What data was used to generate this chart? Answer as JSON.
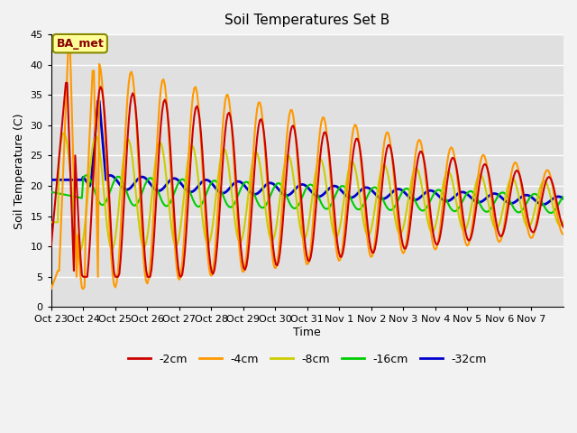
{
  "title": "Soil Temperatures Set B",
  "xlabel": "Time",
  "ylabel": "Soil Temperature (C)",
  "ylim": [
    0,
    45
  ],
  "annotation": "BA_met",
  "bg_color": "#e0e0e0",
  "tick_labels": [
    "Oct 23",
    "Oct 24",
    "Oct 25",
    "Oct 26",
    "Oct 27",
    "Oct 28",
    "Oct 29",
    "Oct 30",
    "Oct 31",
    "Nov 1",
    "Nov 2",
    "Nov 3",
    "Nov 4",
    "Nov 5",
    "Nov 6",
    "Nov 7"
  ],
  "legend_labels": [
    "-2cm",
    "-4cm",
    "-8cm",
    "-16cm",
    "-32cm"
  ],
  "line_colors": [
    "#cc0000",
    "#ff9900",
    "#cccc00",
    "#00cc00",
    "#0000cc"
  ],
  "line_widths": [
    1.5,
    1.5,
    1.5,
    1.5,
    2.0
  ],
  "yticks": [
    0,
    5,
    10,
    15,
    20,
    25,
    30,
    35,
    40,
    45
  ]
}
